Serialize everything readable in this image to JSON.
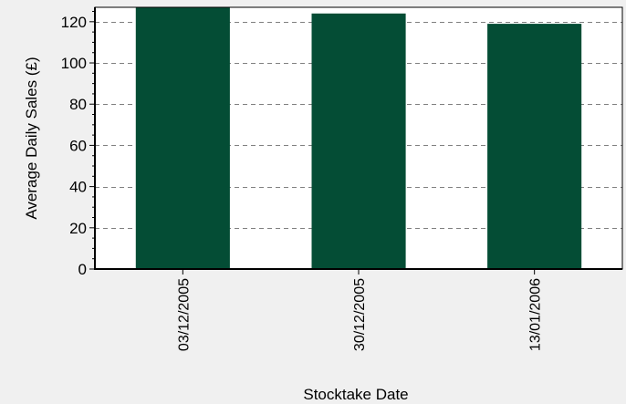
{
  "chart_data": {
    "type": "bar",
    "categories": [
      "03/12/2005",
      "30/12/2005",
      "13/01/2006"
    ],
    "series": [
      {
        "values": [
          127,
          124,
          119
        ],
        "color": "#044d35"
      }
    ],
    "title": "",
    "xlabel": "Stocktake Date",
    "ylabel": "Average Daily Sales (£)",
    "ylim": [
      0,
      127
    ],
    "yticks": [
      0,
      20,
      40,
      60,
      80,
      100,
      120
    ],
    "grid": "horizontal dashed",
    "legend": "none",
    "plot_background": "#ffffff",
    "page_background": "#f0f0f0"
  }
}
